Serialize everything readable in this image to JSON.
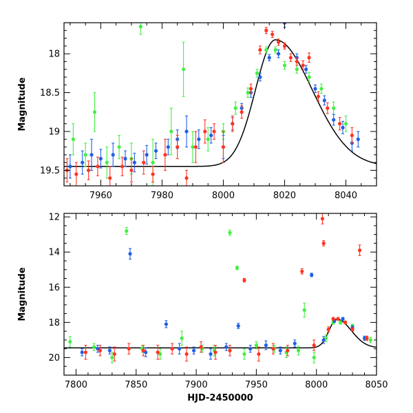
{
  "colors": {
    "green": "#44ee44",
    "blue": "#1f5fe8",
    "red": "#ff3322",
    "model": "#000000"
  },
  "chart_data": [
    {
      "type": "scatter",
      "xlabel": "",
      "ylabel": "Magnitude",
      "xlim": [
        7948,
        8050
      ],
      "ylim": [
        19.7,
        17.6
      ],
      "y_inverted": true,
      "xticks": [
        7960,
        7980,
        8000,
        8020,
        8040
      ],
      "yticks": [
        18,
        18.5,
        19,
        19.5
      ],
      "ytick_labels": [
        "18",
        "18.5",
        "19",
        "19.5"
      ],
      "model_curve": {
        "baseline_mag": 19.45,
        "peak_mag": 17.82,
        "peak_time": 8017,
        "rise_width": 6.5,
        "decay_width": 12,
        "x": [
          7948,
          8050
        ]
      },
      "series": [
        {
          "color": "green",
          "x": [
            7951,
            7955,
            7958,
            7962,
            7966,
            7970,
            7973,
            7977,
            7983,
            7987,
            7990,
            7995,
            8000,
            8004,
            8008,
            8011,
            8014,
            8017,
            8020,
            8024,
            8028,
            8032,
            8036,
            8040
          ],
          "y": [
            19.1,
            19.3,
            18.75,
            19.4,
            19.2,
            19.35,
            17.65,
            19.4,
            19.0,
            18.2,
            19.2,
            19.1,
            19.0,
            18.7,
            18.5,
            18.25,
            17.95,
            17.95,
            18.15,
            18.2,
            18.3,
            18.45,
            18.7,
            18.9
          ],
          "err": [
            0.2,
            0.15,
            0.25,
            0.2,
            0.15,
            0.2,
            0.1,
            0.3,
            0.3,
            0.35,
            0.2,
            0.15,
            0.1,
            0.08,
            0.06,
            0.05,
            0.04,
            0.04,
            0.05,
            0.05,
            0.06,
            0.06,
            0.08,
            0.1
          ]
        },
        {
          "color": "blue",
          "x": [
            7950,
            7954,
            7957,
            7960,
            7964,
            7968,
            7971,
            7975,
            7978,
            7982,
            7985,
            7988,
            7992,
            7996,
            8000,
            8003,
            8006,
            8009,
            8012,
            8015,
            8018,
            8020,
            8024,
            8027,
            8030,
            8033,
            8036,
            8039,
            8042,
            8044
          ],
          "y": [
            19.45,
            19.4,
            19.3,
            19.35,
            19.3,
            19.35,
            19.4,
            19.3,
            19.25,
            19.2,
            19.1,
            19.0,
            19.1,
            19.05,
            19.2,
            18.9,
            18.7,
            18.5,
            18.3,
            18.05,
            18.0,
            17.6,
            18.05,
            18.2,
            18.45,
            18.6,
            18.85,
            18.95,
            19.15,
            19.1
          ],
          "err": [
            0.15,
            0.15,
            0.2,
            0.12,
            0.15,
            0.1,
            0.12,
            0.12,
            0.1,
            0.1,
            0.12,
            0.2,
            0.12,
            0.1,
            0.15,
            0.08,
            0.06,
            0.06,
            0.05,
            0.04,
            0.05,
            0.06,
            0.05,
            0.05,
            0.05,
            0.06,
            0.07,
            0.08,
            0.1,
            0.1
          ]
        },
        {
          "color": "red",
          "x": [
            7949,
            7952,
            7956,
            7959,
            7963,
            7967,
            7970,
            7974,
            7977,
            7981,
            7985,
            7988,
            7991,
            7994,
            7997,
            8000,
            8003,
            8006,
            8009,
            8012,
            8014,
            8016,
            8018,
            8020,
            8022,
            8024,
            8026,
            8028,
            8031,
            8034,
            8038,
            8042
          ],
          "y": [
            19.5,
            19.55,
            19.5,
            19.45,
            19.6,
            19.45,
            19.5,
            19.4,
            19.55,
            19.3,
            19.2,
            19.6,
            19.2,
            19.0,
            19.0,
            19.2,
            18.9,
            18.75,
            18.45,
            17.95,
            17.7,
            17.75,
            17.85,
            17.9,
            18.05,
            18.1,
            18.15,
            18.05,
            18.55,
            18.7,
            18.9,
            19.05
          ],
          "err": [
            0.15,
            0.15,
            0.12,
            0.12,
            0.15,
            0.12,
            0.15,
            0.15,
            0.1,
            0.2,
            0.15,
            0.1,
            0.2,
            0.15,
            0.1,
            0.2,
            0.1,
            0.08,
            0.06,
            0.05,
            0.04,
            0.04,
            0.04,
            0.04,
            0.05,
            0.05,
            0.06,
            0.06,
            0.06,
            0.07,
            0.08,
            0.1
          ]
        }
      ]
    },
    {
      "type": "scatter",
      "xlabel": "HJD-2450000",
      "ylabel": "Magnitude",
      "xlim": [
        7790,
        8050
      ],
      "ylim": [
        21.0,
        11.8
      ],
      "y_inverted": true,
      "xticks": [
        7800,
        7850,
        7900,
        7950,
        8000,
        8050
      ],
      "yticks": [
        12,
        14,
        16,
        18,
        20
      ],
      "ytick_labels": [
        "12",
        "14",
        "16",
        "18",
        "20"
      ],
      "model_curve": {
        "baseline_mag": 19.45,
        "peak_mag": 17.82,
        "peak_time": 8017,
        "rise_width": 6.5,
        "decay_width": 12,
        "x": [
          7790,
          8050
        ]
      },
      "series": [
        {
          "color": "green",
          "x": [
            7795,
            7815,
            7830,
            7842,
            7855,
            7870,
            7888,
            7905,
            7915,
            7928,
            7934,
            7940,
            7950,
            7965,
            7975,
            7985,
            7990,
            7998,
            8008,
            8014,
            8020,
            8030,
            8045
          ],
          "y": [
            19.1,
            19.4,
            20.0,
            12.8,
            19.5,
            19.8,
            18.9,
            19.5,
            19.6,
            12.9,
            14.9,
            19.8,
            19.3,
            19.5,
            19.7,
            19.6,
            17.3,
            20.0,
            18.9,
            18.0,
            18.0,
            18.2,
            19.0
          ],
          "err": [
            0.3,
            0.2,
            0.3,
            0.2,
            0.2,
            0.3,
            0.4,
            0.2,
            0.3,
            0.15,
            0.1,
            0.3,
            0.2,
            0.2,
            0.3,
            0.25,
            0.4,
            0.3,
            0.2,
            0.1,
            0.1,
            0.1,
            0.15
          ]
        },
        {
          "color": "blue",
          "x": [
            7805,
            7818,
            7828,
            7845,
            7858,
            7875,
            7886,
            7898,
            7912,
            7925,
            7935,
            7945,
            7958,
            7970,
            7982,
            7996,
            8006,
            8015,
            8022,
            8030,
            8040
          ],
          "y": [
            19.7,
            19.5,
            19.6,
            14.1,
            19.7,
            18.1,
            19.5,
            19.6,
            19.8,
            19.4,
            18.2,
            19.5,
            19.3,
            19.6,
            19.2,
            15.3,
            19.0,
            17.9,
            17.8,
            18.3,
            18.9
          ],
          "err": [
            0.2,
            0.2,
            0.2,
            0.3,
            0.25,
            0.2,
            0.3,
            0.2,
            0.3,
            0.2,
            0.15,
            0.2,
            0.25,
            0.2,
            0.2,
            0.1,
            0.2,
            0.1,
            0.08,
            0.1,
            0.12
          ]
        },
        {
          "color": "red",
          "x": [
            7808,
            7820,
            7832,
            7844,
            7856,
            7868,
            7880,
            7892,
            7904,
            7916,
            7928,
            7940,
            7952,
            7964,
            7976,
            7988,
            7998,
            8005,
            8006,
            8010,
            8014,
            8018,
            8024,
            8030,
            8036,
            8042
          ],
          "y": [
            19.7,
            19.6,
            19.8,
            19.5,
            19.6,
            19.7,
            19.5,
            19.8,
            19.4,
            19.7,
            19.6,
            15.6,
            19.8,
            19.5,
            19.6,
            15.1,
            19.3,
            12.1,
            13.5,
            18.4,
            17.8,
            17.8,
            18.0,
            18.4,
            13.9,
            18.9
          ],
          "err": [
            0.4,
            0.3,
            0.4,
            0.3,
            0.3,
            0.4,
            0.3,
            0.4,
            0.3,
            0.4,
            0.3,
            0.1,
            0.4,
            0.3,
            0.3,
            0.15,
            0.3,
            0.3,
            0.15,
            0.15,
            0.08,
            0.08,
            0.08,
            0.1,
            0.3,
            0.12
          ]
        }
      ]
    }
  ]
}
